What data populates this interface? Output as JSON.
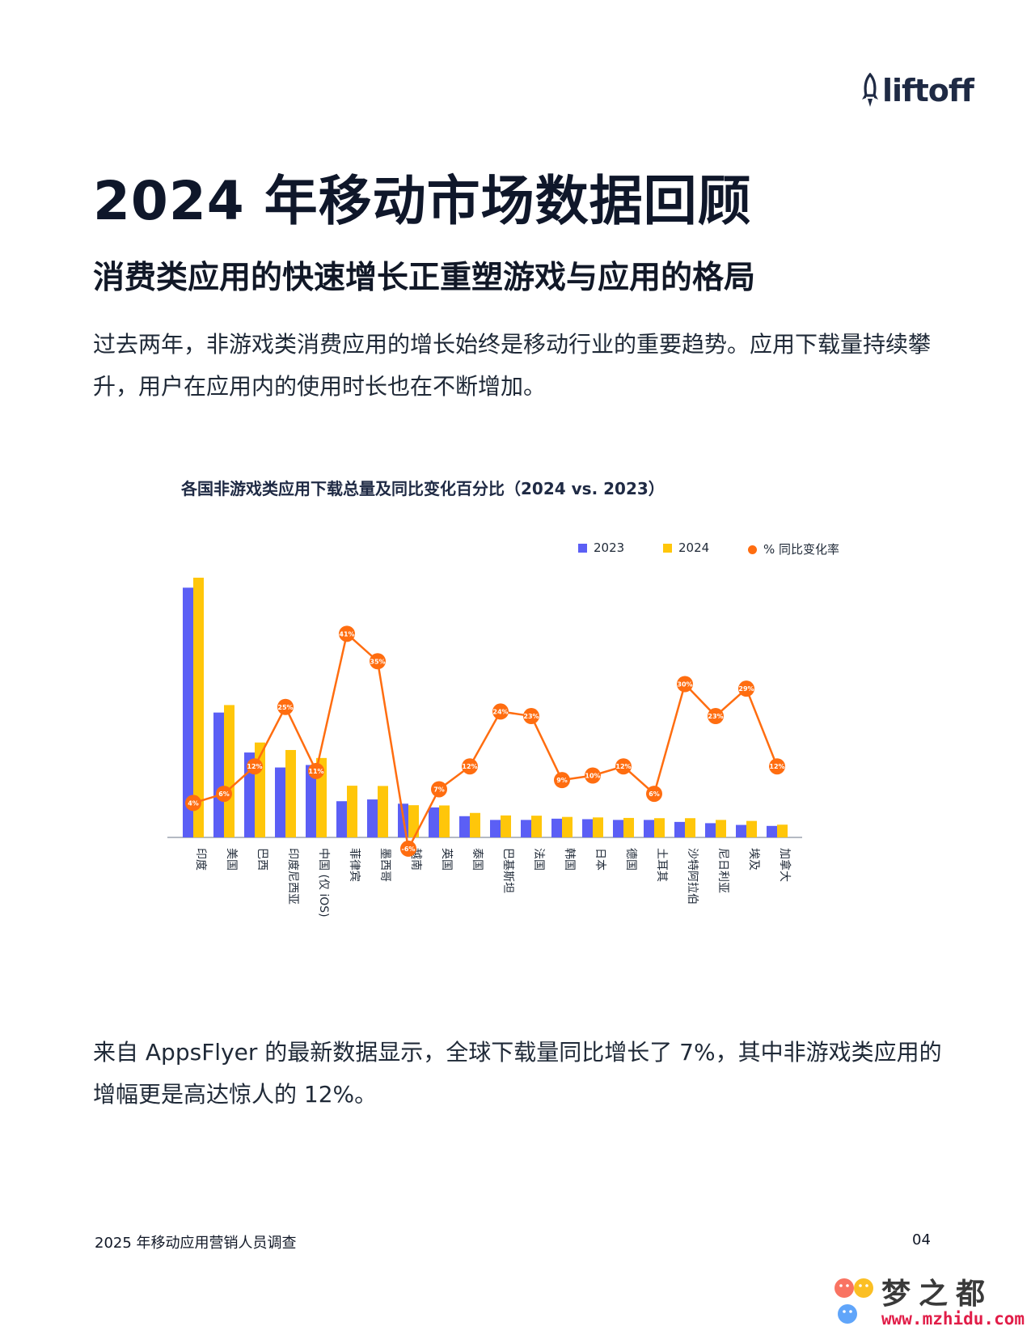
{
  "header": {
    "logo_text": "liftoff",
    "logo_icon": "rocket-icon"
  },
  "page": {
    "title": "2024 年移动市场数据回顾",
    "subtitle": "消费类应用的快速增长正重塑游戏与应用的格局",
    "paragraph1": "过去两年，非游戏类消费应用的增长始终是移动行业的重要趋势。应用下载量持续攀升，用户在应用内的使用时长也在不断增加。",
    "paragraph2": "来自 AppsFlyer 的最新数据显示，全球下载量同比增长了 7%，其中非游戏类应用的增幅更是高达惊人的 12%。"
  },
  "chart_data": {
    "type": "bar",
    "title": "各国非游戏类应用下载总量及同比变化百分比（2024 vs. 2023）",
    "categories": [
      "印度",
      "美国",
      "巴西",
      "印度尼西亚",
      "中国 (仅 iOS)",
      "菲律宾",
      "墨西哥",
      "越南",
      "英国",
      "泰国",
      "巴基斯坦",
      "法国",
      "韩国",
      "日本",
      "德国",
      "土耳其",
      "沙特阿拉伯",
      "尼日利亚",
      "埃及",
      "加拿大"
    ],
    "series": [
      {
        "name": "2023",
        "color": "#5b5ff5",
        "values": [
          100,
          50,
          34,
          28,
          29,
          14.5,
          15.2,
          13.5,
          12,
          8.5,
          7,
          7,
          7.5,
          7.3,
          7,
          7,
          6.2,
          5.7,
          5,
          4.6
        ]
      },
      {
        "name": "2024",
        "color": "#ffc60a",
        "values": [
          104,
          53,
          38,
          35,
          31.8,
          20.7,
          20.6,
          12.9,
          12.8,
          9.8,
          8.8,
          8.7,
          8.2,
          8,
          7.8,
          7.7,
          7.7,
          7,
          6.6,
          5.1
        ]
      },
      {
        "name": "% 同比变化率",
        "color": "#ff6d10",
        "type": "line",
        "values": [
          4,
          6,
          12,
          25,
          11,
          41,
          35,
          -6,
          7,
          12,
          24,
          23,
          9,
          10,
          12,
          6,
          30,
          23,
          29,
          12
        ]
      }
    ],
    "line_labels": [
      "4%",
      "6%",
      "12%",
      "25%",
      "11%",
      "41%",
      "35%",
      "-6%",
      "7%",
      "12%",
      "24%",
      "23%",
      "9%",
      "10%",
      "12%",
      "6%",
      "30%",
      "23%",
      "29%",
      "12%"
    ],
    "legend_position": "top-right",
    "grid": false
  },
  "footer": {
    "left": "2025 年移动应用营销人员调查",
    "right": "04"
  },
  "watermark": {
    "name": "梦之都",
    "url": "www.mzhidu.com"
  }
}
